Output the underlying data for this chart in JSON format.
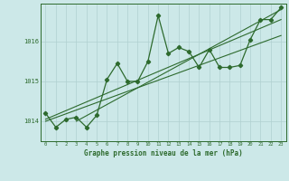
{
  "x": [
    0,
    1,
    2,
    3,
    4,
    5,
    6,
    7,
    8,
    9,
    10,
    11,
    12,
    13,
    14,
    15,
    16,
    17,
    18,
    19,
    20,
    21,
    22,
    23
  ],
  "main_line": [
    1014.2,
    1013.85,
    1014.05,
    1014.1,
    1013.85,
    1014.15,
    1015.05,
    1015.45,
    1015.0,
    1015.0,
    1015.5,
    1016.65,
    1015.7,
    1015.85,
    1015.75,
    1015.35,
    1015.8,
    1015.35,
    1015.35,
    1015.4,
    1016.05,
    1016.55,
    1016.55,
    1016.85
  ],
  "trend1_x": [
    0,
    23
  ],
  "trend1_y": [
    1014.0,
    1016.15
  ],
  "trend2_x": [
    0,
    23
  ],
  "trend2_y": [
    1014.05,
    1016.55
  ],
  "trend3_x": [
    3,
    23
  ],
  "trend3_y": [
    1014.0,
    1016.8
  ],
  "line_color": "#2d6a2d",
  "bg_color": "#cce8e8",
  "grid_color": "#b0d0d0",
  "ylabel_ticks": [
    1014,
    1015,
    1016
  ],
  "xlabel": "Graphe pression niveau de la mer (hPa)",
  "ylim": [
    1013.5,
    1016.95
  ],
  "xlim": [
    -0.5,
    23.5
  ]
}
